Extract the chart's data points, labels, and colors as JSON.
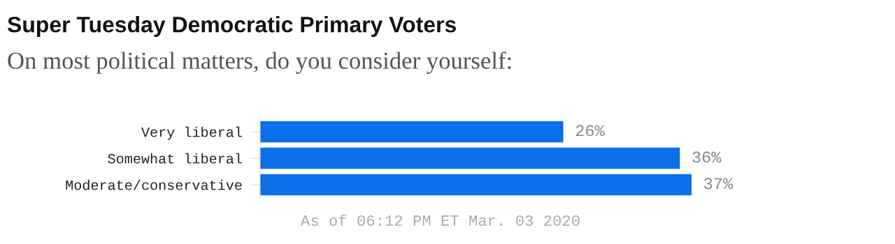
{
  "chart_data": {
    "type": "bar",
    "orientation": "horizontal",
    "title": "Super Tuesday Democratic Primary Voters",
    "subtitle": "On most political matters, do you consider yourself:",
    "categories": [
      "Very liberal",
      "Somewhat liberal",
      "Moderate/conservative"
    ],
    "values": [
      26,
      36,
      37
    ],
    "value_labels": [
      "26%",
      "36%",
      "37%"
    ],
    "color": "#0a6fe8",
    "annotations": [
      "As of 06:12 PM ET Mar. 03 2020"
    ],
    "grid": false,
    "legend": false
  }
}
